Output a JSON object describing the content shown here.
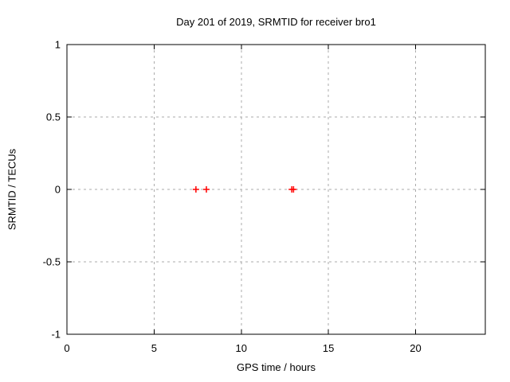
{
  "window": {
    "background": "#ffffff"
  },
  "chart_data": {
    "type": "scatter",
    "title": "Day 201 of 2019, SRMTID for receiver bro1",
    "xlabel": "GPS time / hours",
    "ylabel": "SRMTID / TECUs",
    "xlim": [
      0,
      24
    ],
    "ylim": [
      -1,
      1
    ],
    "grid": true,
    "grid_style": "dashed",
    "legend": "none",
    "xticks": {
      "values": [
        0,
        5,
        10,
        15,
        20
      ],
      "labels": [
        "0",
        "5",
        "10",
        "15",
        "20"
      ]
    },
    "yticks": {
      "values": [
        1,
        0.5,
        0,
        -0.5,
        -1
      ],
      "labels": [
        "1",
        "0.5",
        "0",
        "-0.5",
        "-1"
      ]
    },
    "series": [
      {
        "name": "SRMTID",
        "marker": "plus",
        "color": "#ff0000",
        "points": [
          [
            7.4,
            0
          ],
          [
            8.0,
            0
          ],
          [
            12.9,
            0
          ],
          [
            13.0,
            0
          ]
        ]
      }
    ],
    "colors": {
      "background": "#ffffff",
      "border": "#000000",
      "grid": "#ababab",
      "text": "#000000",
      "marker": "#ff0000"
    }
  }
}
